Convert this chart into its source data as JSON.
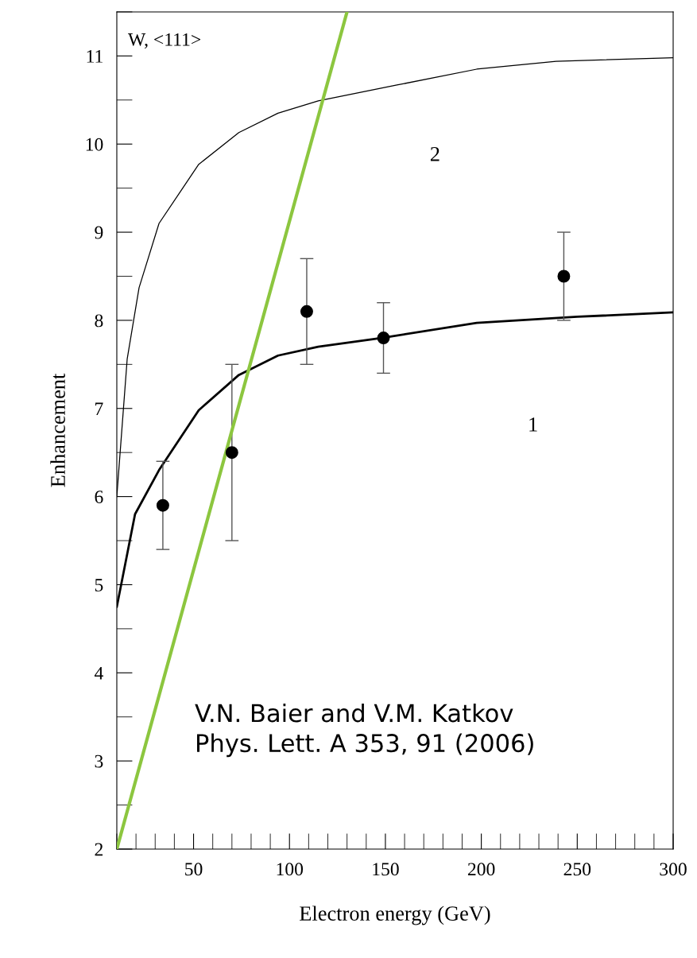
{
  "chart_data": {
    "type": "line",
    "xlabel": "Electron energy (GeV)",
    "ylabel": "Enhancement",
    "xlim": [
      10,
      300
    ],
    "xticks": [
      50,
      100,
      150,
      200,
      250,
      300
    ],
    "ylim": [
      2,
      11.5
    ],
    "yticks": [
      2,
      3,
      4,
      5,
      6,
      7,
      8,
      9,
      10,
      11
    ],
    "grid": false,
    "legend": false,
    "series": [
      {
        "color": "#000000",
        "x": [
          10,
          19.5,
          32,
          52.7,
          73.6,
          94,
          115,
          148,
          197.6,
          250,
          300
        ],
        "values": [
          4.75,
          5.8,
          6.3,
          6.98,
          7.38,
          7.6,
          7.7,
          7.8,
          7.97,
          8.04,
          8.09
        ]
      },
      {
        "color": "#000000",
        "x": [
          10,
          15.4,
          21.6,
          32,
          52.7,
          73.6,
          94,
          115,
          156,
          197.6,
          239,
          300
        ],
        "values": [
          6.0,
          7.56,
          8.37,
          9.1,
          9.77,
          10.13,
          10.35,
          10.49,
          10.67,
          10.85,
          10.94,
          10.98
        ]
      },
      {
        "type": "scatter",
        "color": "#000000",
        "marker": "circle",
        "x": [
          34,
          70,
          109,
          149,
          243
        ],
        "values": [
          5.9,
          6.5,
          8.1,
          7.8,
          8.5
        ],
        "errors": [
          [
            5.4,
            6.4
          ],
          [
            5.5,
            7.5
          ],
          [
            7.5,
            8.7
          ],
          [
            7.4,
            8.2
          ],
          [
            8.0,
            9.0
          ]
        ]
      },
      {
        "color": "#8cc63f",
        "x": [
          10,
          130
        ],
        "values": [
          2,
          11.5
        ]
      }
    ],
    "annotations": [
      "W, <111>",
      "1",
      "2",
      "V.N. Baier and V.M. Katkov\nPhys. Lett. A 353, 91 (2006)"
    ]
  }
}
